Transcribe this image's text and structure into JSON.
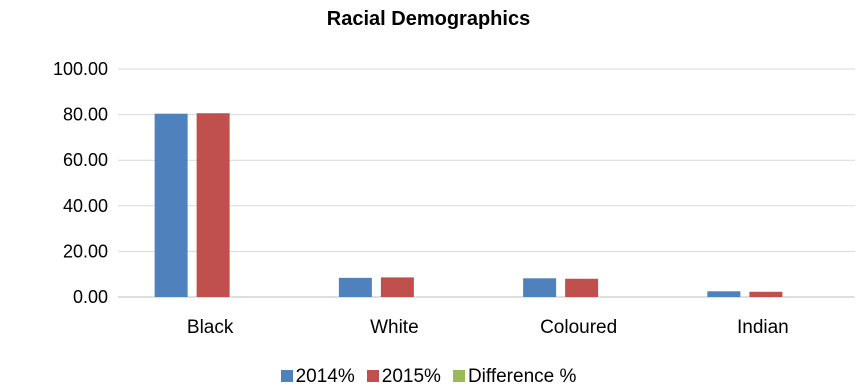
{
  "chart_data": {
    "type": "bar",
    "title": "Racial Demographics",
    "categories": [
      "Black",
      "White",
      "Coloured",
      "Indian"
    ],
    "series": [
      {
        "name": "2014%",
        "color": "#4f81bd",
        "values": [
          80.4,
          8.4,
          8.2,
          2.5
        ]
      },
      {
        "name": "2015%",
        "color": "#c0504d",
        "values": [
          80.6,
          8.6,
          8.0,
          2.3
        ]
      },
      {
        "name": "Difference %",
        "color": "#9bbb59",
        "values": [
          0,
          0,
          0,
          0
        ]
      }
    ],
    "ylim": [
      0,
      100
    ],
    "yticks": [
      0,
      20,
      40,
      60,
      80,
      100
    ],
    "ytick_labels": [
      "0.00",
      "20.00",
      "40.00",
      "60.00",
      "80.00",
      "100.00"
    ],
    "grid": true,
    "legend_position": "bottom"
  }
}
